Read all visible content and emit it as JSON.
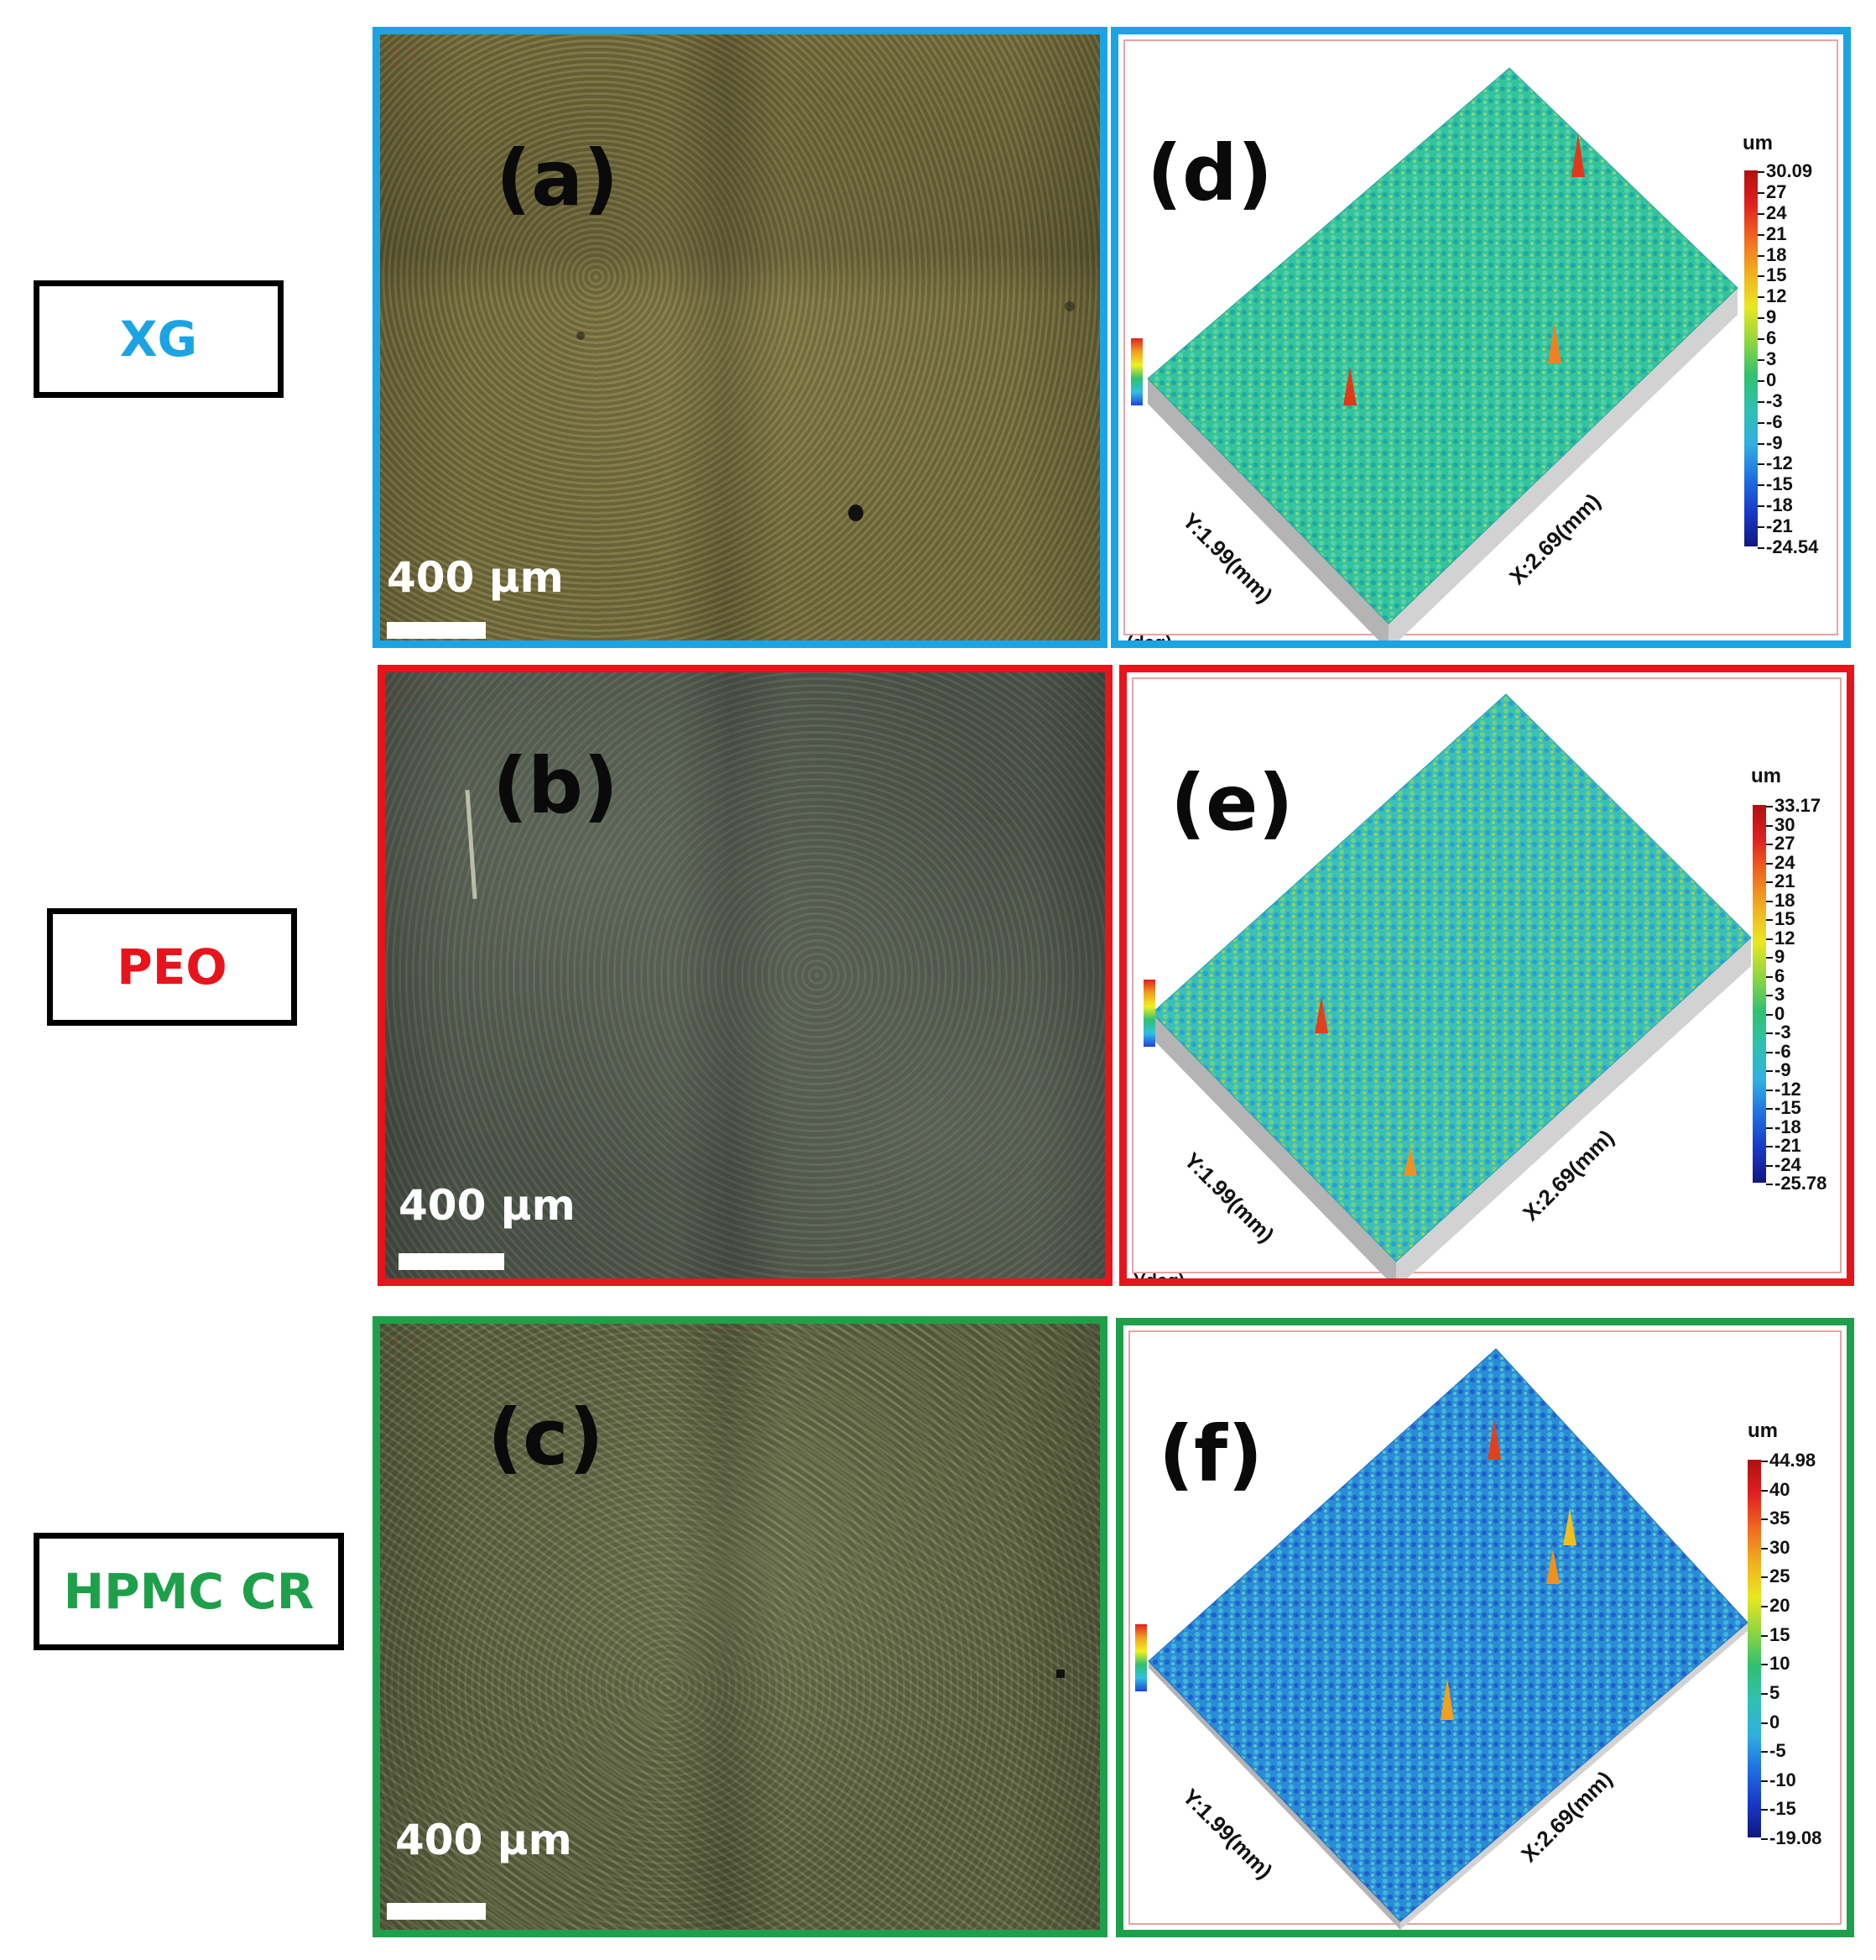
{
  "rows": [
    {
      "sample": "XG",
      "sample_color": "#1ba4e3",
      "frame_color": "#1ba4e3",
      "micrograph": {
        "label": "(a)",
        "scale": "400 µm"
      },
      "profile": {
        "label": "(d)",
        "unit": "um",
        "ticks": [
          "30.09",
          "27",
          "24",
          "21",
          "18",
          "15",
          "12",
          "9",
          "6",
          "3",
          "0",
          "-3",
          "-6",
          "-9",
          "-12",
          "-15",
          "-18",
          "-21",
          "-24.54"
        ],
        "x_axis": "X:2.69(mm)",
        "y_axis": "Y:1.99(mm)",
        "cut_text": "(deg)",
        "surface_color": "#2fc29a"
      }
    },
    {
      "sample": "PEO",
      "sample_color": "#e8141b",
      "frame_color": "#e8141b",
      "micrograph": {
        "label": "(b)",
        "scale": "400 µm"
      },
      "profile": {
        "label": "(e)",
        "unit": "um",
        "ticks": [
          "33.17",
          "30",
          "27",
          "24",
          "21",
          "18",
          "15",
          "12",
          "9",
          "6",
          "3",
          "0",
          "-3",
          "-6",
          "-9",
          "-12",
          "-15",
          "-18",
          "-21",
          "-24",
          "-25.78"
        ],
        "x_axis": "X:2.69(mm)",
        "y_axis": "Y:1.99(mm)",
        "cut_text": ")(deg)",
        "surface_color": "#34bfb4"
      }
    },
    {
      "sample": "HPMC CR",
      "sample_color": "#1ea04a",
      "frame_color": "#1ea04a",
      "micrograph": {
        "label": "(c)",
        "scale": "400 µm"
      },
      "profile": {
        "label": "(f)",
        "unit": "um",
        "ticks": [
          "44.98",
          "40",
          "35",
          "30",
          "25",
          "20",
          "15",
          "10",
          "5",
          "0",
          "-5",
          "-10",
          "-15",
          "-19.08"
        ],
        "x_axis": "X:2.69(mm)",
        "y_axis": "Y:1.99(mm)",
        "cut_text": "",
        "surface_color": "#2a8fd6"
      }
    }
  ]
}
